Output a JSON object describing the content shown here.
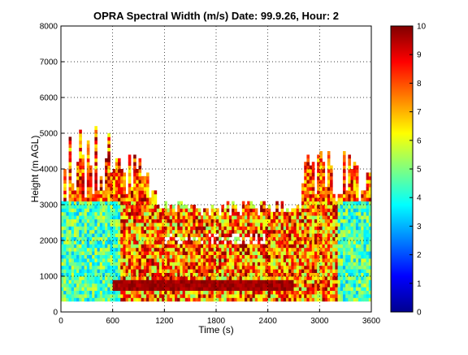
{
  "chart_data": {
    "type": "heatmap",
    "title": "OPRA Spectral Width (m/s)  Date: 99.9.26, Hour: 2",
    "xlabel": "Time (s)",
    "ylabel": "Height (m AGL)",
    "xlim": [
      0,
      3600
    ],
    "ylim": [
      0,
      8000
    ],
    "xticks": [
      "0",
      "600",
      "1200",
      "1800",
      "2400",
      "3000",
      "3600"
    ],
    "yticks": [
      "0",
      "1000",
      "2000",
      "3000",
      "4000",
      "5000",
      "6000",
      "7000",
      "8000"
    ],
    "grid": true,
    "colorbar": {
      "min": 0,
      "max": 10,
      "ticks": [
        "0",
        "1",
        "2",
        "3",
        "4",
        "5",
        "6",
        "7",
        "8",
        "9",
        "10"
      ],
      "colormap": "jet"
    },
    "field_description": "Spectral width (m/s) as a function of time and height",
    "regions": [
      {
        "label": "low_level_dense",
        "x_range": [
          0,
          3600
        ],
        "height_range": [
          300,
          3000
        ],
        "typical_value": [
          3,
          10
        ]
      },
      {
        "label": "early_plumes",
        "x_range": [
          0,
          1100
        ],
        "height_range": [
          3000,
          6300
        ],
        "typical_value": [
          6,
          10
        ]
      },
      {
        "label": "late_plumes",
        "x_range": [
          2800,
          3600
        ],
        "height_range": [
          3000,
          4600
        ],
        "typical_value": [
          6,
          10
        ]
      },
      {
        "label": "near_ground_high_band",
        "x_range": [
          600,
          2700
        ],
        "height_range": [
          600,
          900
        ],
        "typical_value": [
          9,
          10
        ]
      }
    ]
  }
}
